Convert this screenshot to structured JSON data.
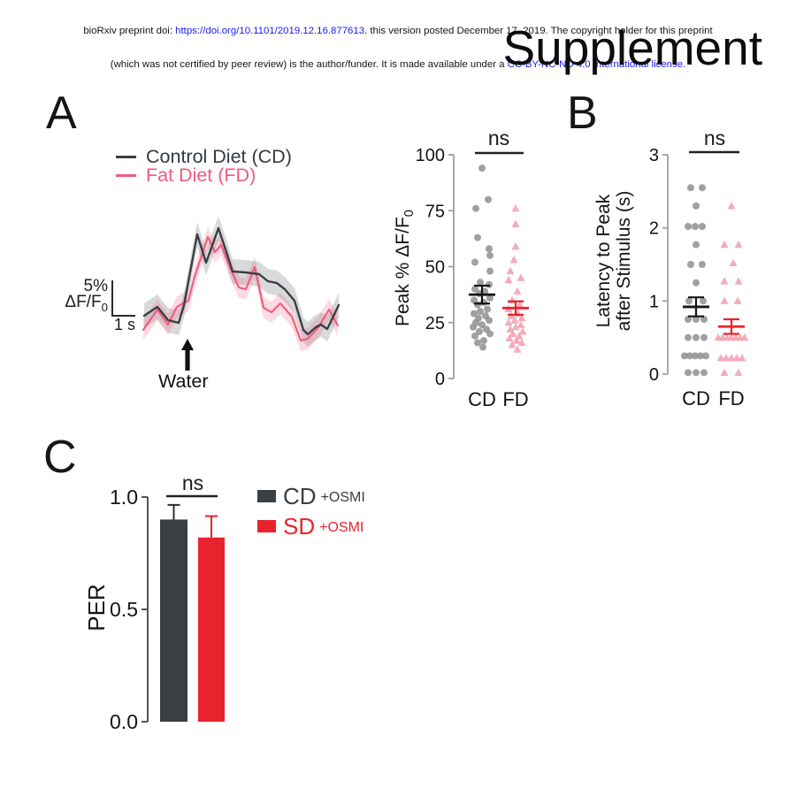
{
  "header": {
    "line1_pre": "bioRxiv preprint doi: ",
    "line1_link": "https://doi.org/10.1101/2019.12.16.877613",
    "line1_post": ". this version posted December 17, 2019. The copyright holder for this preprint",
    "line2_pre": "(which was not certified by peer review) is the author/funder. It is made available under a ",
    "line2_link": "CC-BY-NC-ND 4.0 International license.",
    "link_color": "#1a19ef"
  },
  "title": "Supplement",
  "panelA": {
    "letter": "A",
    "legend": [
      {
        "label": "Control Diet (CD)",
        "color": "#3a3f45"
      },
      {
        "label": "Fat Diet (FD)",
        "color": "#f05c7d"
      }
    ],
    "scalebar": {
      "pct": "5%",
      "ratio_main": "ΔF/F",
      "ratio_sub": "0",
      "time": "1 s"
    },
    "stimulus": "Water",
    "ylabel_main": "Peak % ΔF/F",
    "ylabel_sub": "0"
  },
  "panelB": {
    "letter": "B",
    "ylabel_line1": "Latency to Peak",
    "ylabel_line2": "after Stimulus (s)"
  },
  "panelC": {
    "letter": "C",
    "legend": [
      {
        "label": "CD",
        "suffix": "+OSMI",
        "color": "#3a3f44"
      },
      {
        "label": "SD",
        "suffix": "+OSMI",
        "color": "#e8232e"
      }
    ]
  },
  "chart_data": [
    {
      "type": "line",
      "title": "Water-evoked ΔF/F traces",
      "x_scale_bar": "1 s",
      "y_scale_bar": "5% ΔF/F0",
      "stimulus_label": "Water",
      "series": [
        {
          "name": "Control Diet (CD)",
          "color": "#3a3f45",
          "band_color": "rgba(150,155,160,0.38)",
          "band_halfwidth": 14,
          "points": [
            [
              3,
              132
            ],
            [
              18,
              122
            ],
            [
              30,
              137
            ],
            [
              42,
              140
            ],
            [
              48,
              120
            ],
            [
              63,
              40
            ],
            [
              73,
              72
            ],
            [
              87,
              33
            ],
            [
              95,
              57
            ],
            [
              103,
              82
            ],
            [
              118,
              83
            ],
            [
              133,
              85
            ],
            [
              143,
              93
            ],
            [
              153,
              95
            ],
            [
              162,
              102
            ],
            [
              173,
              115
            ],
            [
              183,
              148
            ],
            [
              188,
              153
            ],
            [
              197,
              145
            ],
            [
              203,
              142
            ],
            [
              210,
              147
            ],
            [
              223,
              120
            ]
          ]
        },
        {
          "name": "Fat Diet (FD)",
          "color": "#f05c7d",
          "band_color": "rgba(240,92,125,0.22)",
          "band_halfwidth": 12,
          "points": [
            [
              2,
              148
            ],
            [
              18,
              125
            ],
            [
              30,
              142
            ],
            [
              40,
              122
            ],
            [
              47,
              118
            ],
            [
              53,
              115
            ],
            [
              60,
              88
            ],
            [
              75,
              43
            ],
            [
              83,
              60
            ],
            [
              90,
              52
            ],
            [
              102,
              82
            ],
            [
              110,
              100
            ],
            [
              118,
              102
            ],
            [
              128,
              77
            ],
            [
              138,
              123
            ],
            [
              147,
              128
            ],
            [
              157,
              118
            ],
            [
              170,
              133
            ],
            [
              180,
              160
            ],
            [
              188,
              158
            ],
            [
              200,
              145
            ],
            [
              212,
              125
            ],
            [
              222,
              143
            ]
          ]
        }
      ]
    },
    {
      "type": "scatter",
      "ylabel": "Peak % ΔF/F0",
      "ylim": [
        0,
        100
      ],
      "yticks": [
        [
          0,
          "0"
        ],
        [
          25,
          "25"
        ],
        [
          50,
          "50"
        ],
        [
          75,
          "75"
        ],
        [
          100,
          "100"
        ]
      ],
      "significance": "ns",
      "groups": [
        {
          "name": "CD",
          "marker": "circle",
          "color": "#8f8f8f",
          "mean": 37.5,
          "sem": 4,
          "mean_color": "#141414",
          "points": [
            [
              94,
              0
            ],
            [
              80,
              7
            ],
            [
              76,
              -7
            ],
            [
              63,
              -5
            ],
            [
              58,
              8
            ],
            [
              55,
              9
            ],
            [
              52,
              -8
            ],
            [
              48,
              9
            ],
            [
              43,
              -2
            ],
            [
              42,
              8
            ],
            [
              40,
              -8
            ],
            [
              39,
              3
            ],
            [
              38,
              -3
            ],
            [
              36,
              9
            ],
            [
              35,
              -9
            ],
            [
              34,
              2
            ],
            [
              33,
              -5
            ],
            [
              31,
              6
            ],
            [
              30,
              -2
            ],
            [
              29,
              -9
            ],
            [
              28,
              4
            ],
            [
              27,
              -4
            ],
            [
              26,
              8
            ],
            [
              25,
              -7
            ],
            [
              24,
              0
            ],
            [
              23,
              -10
            ],
            [
              22,
              5
            ],
            [
              21,
              -3
            ],
            [
              20,
              9
            ],
            [
              19,
              -8
            ],
            [
              17,
              2
            ],
            [
              16,
              -5
            ],
            [
              14,
              1
            ]
          ]
        },
        {
          "name": "FD",
          "marker": "triangle",
          "color": "#f5a2b2",
          "mean": 31.5,
          "sem": 3,
          "mean_color": "#e8232e",
          "points": [
            [
              76,
              0
            ],
            [
              69,
              0
            ],
            [
              59,
              0
            ],
            [
              53,
              -2
            ],
            [
              48,
              -6
            ],
            [
              45,
              6
            ],
            [
              44,
              -8
            ],
            [
              39,
              2
            ],
            [
              35,
              -4
            ],
            [
              33,
              5
            ],
            [
              31,
              -8
            ],
            [
              29,
              3
            ],
            [
              28,
              -5
            ],
            [
              27,
              7
            ],
            [
              26,
              -1
            ],
            [
              25,
              -8
            ],
            [
              24,
              6
            ],
            [
              23,
              0
            ],
            [
              22,
              -6
            ],
            [
              21,
              8
            ],
            [
              20,
              -3
            ],
            [
              19,
              4
            ],
            [
              18,
              -7
            ],
            [
              17,
              1
            ],
            [
              16,
              7
            ],
            [
              15,
              -4
            ],
            [
              13,
              2
            ]
          ]
        }
      ]
    },
    {
      "type": "scatter",
      "ylabel": "Latency to Peak after Stimulus (s)",
      "ylim": [
        0,
        3
      ],
      "yticks": [
        [
          0,
          "0"
        ],
        [
          1,
          "1"
        ],
        [
          2,
          "2"
        ],
        [
          3,
          "3"
        ]
      ],
      "significance": "ns",
      "groups": [
        {
          "name": "CD",
          "marker": "circle",
          "color": "#8f8f8f",
          "mean": 0.92,
          "sem": 0.13,
          "mean_color": "#141414",
          "points": [
            [
              2.55,
              -6
            ],
            [
              2.55,
              7
            ],
            [
              2.3,
              0
            ],
            [
              2.02,
              -9
            ],
            [
              2.02,
              -1
            ],
            [
              2.02,
              7
            ],
            [
              1.77,
              0
            ],
            [
              1.5,
              -6
            ],
            [
              1.5,
              7
            ],
            [
              1.25,
              0
            ],
            [
              1.0,
              -8
            ],
            [
              1.0,
              8
            ],
            [
              0.75,
              -9
            ],
            [
              0.75,
              0
            ],
            [
              0.75,
              9
            ],
            [
              0.5,
              -9
            ],
            [
              0.5,
              0
            ],
            [
              0.5,
              9
            ],
            [
              0.25,
              -13
            ],
            [
              0.25,
              -7
            ],
            [
              0.25,
              -1
            ],
            [
              0.25,
              5
            ],
            [
              0.25,
              11
            ],
            [
              0.02,
              -9
            ],
            [
              0.02,
              0
            ],
            [
              0.02,
              9
            ]
          ]
        },
        {
          "name": "FD",
          "marker": "triangle",
          "color": "#f5a2b2",
          "mean": 0.65,
          "sem": 0.1,
          "mean_color": "#e8232e",
          "points": [
            [
              2.3,
              0
            ],
            [
              1.77,
              -8
            ],
            [
              1.77,
              8
            ],
            [
              1.52,
              2
            ],
            [
              1.27,
              -8
            ],
            [
              1.27,
              8
            ],
            [
              1.0,
              -8
            ],
            [
              1.0,
              7
            ],
            [
              0.5,
              -15
            ],
            [
              0.5,
              -10
            ],
            [
              0.5,
              -5
            ],
            [
              0.5,
              0
            ],
            [
              0.5,
              5
            ],
            [
              0.5,
              10
            ],
            [
              0.5,
              15
            ],
            [
              0.22,
              -12
            ],
            [
              0.22,
              -6
            ],
            [
              0.22,
              0
            ],
            [
              0.22,
              6
            ],
            [
              0.22,
              12
            ],
            [
              0.02,
              -8
            ],
            [
              0.02,
              8
            ]
          ]
        }
      ]
    },
    {
      "type": "bar",
      "ylabel": "PER",
      "ylim": [
        0,
        1
      ],
      "yticks": [
        [
          0,
          "0.0"
        ],
        [
          0.5,
          "0.5"
        ],
        [
          1,
          "1.0"
        ]
      ],
      "significance": "ns",
      "categories": [
        "CD +OSMI",
        "SD +OSMI"
      ],
      "values": [
        0.9,
        0.82
      ],
      "errors": [
        0.065,
        0.095
      ],
      "colors": [
        "#3a3f44",
        "#e8232e"
      ]
    }
  ]
}
